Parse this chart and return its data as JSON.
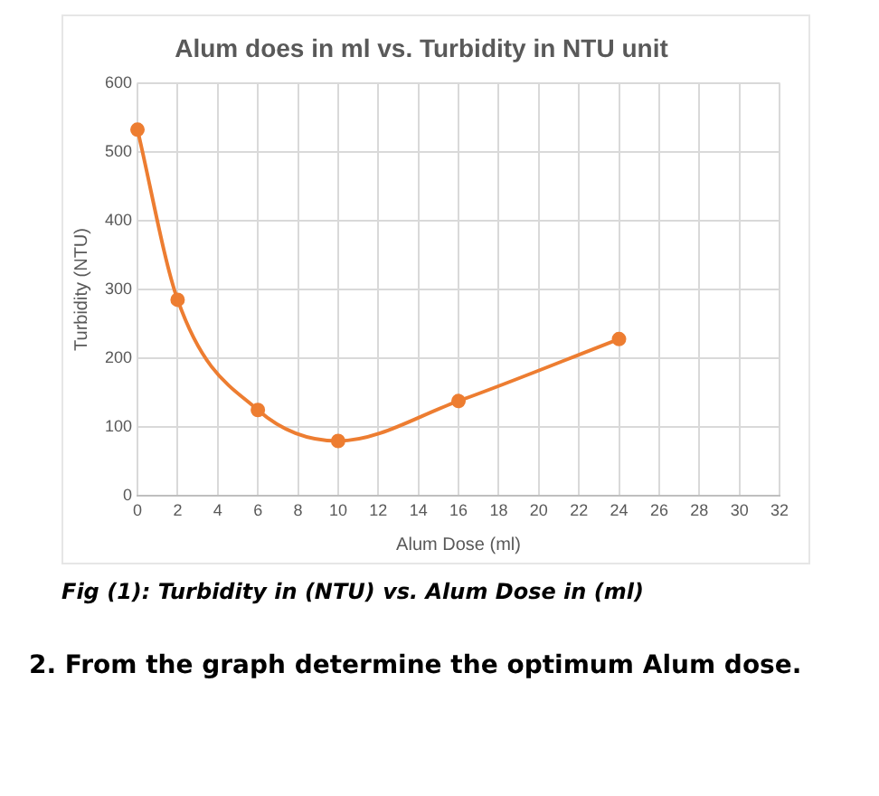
{
  "chart_data": {
    "type": "line",
    "title": "Alum does in ml vs. Turbidity in NTU unit",
    "xlabel": "Alum Dose (ml)",
    "ylabel": "Turbidity (NTU)",
    "x": [
      0,
      2,
      6,
      10,
      16,
      24
    ],
    "series": [
      {
        "color": "#ed7d31",
        "values": [
          532,
          285,
          125,
          80,
          138,
          228
        ]
      }
    ],
    "xlim": [
      0,
      32
    ],
    "xticks": [
      0,
      2,
      4,
      6,
      8,
      10,
      12,
      14,
      16,
      18,
      20,
      22,
      24,
      26,
      28,
      30,
      32
    ],
    "ylim": [
      0,
      600
    ],
    "yticks": [
      0,
      100,
      200,
      300,
      400,
      500,
      600
    ],
    "grid": true,
    "marker": "circle",
    "line_style": "solid",
    "annotations": [
      "Fig (1): Turbidity in (NTU) vs. Alum Dose in (ml)",
      "2. From the graph determine the optimum Alum dose."
    ]
  }
}
